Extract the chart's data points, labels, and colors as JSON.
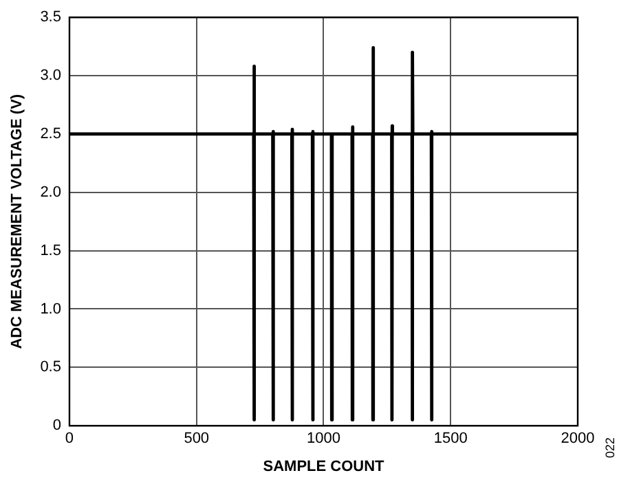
{
  "chart_data": {
    "type": "line",
    "xlabel": "SAMPLE COUNT",
    "ylabel": "ADC MEASUREMENT VOLTAGE (V)",
    "annotations": [
      "022"
    ],
    "xlim": [
      0,
      2000
    ],
    "xticks": [
      0,
      500,
      1000,
      1500,
      2000
    ],
    "ylim": [
      0,
      3.5
    ],
    "yticks": [
      0,
      0.5,
      {
        "value": 1,
        "label": "1.0"
      },
      1.5,
      {
        "value": 2,
        "label": "2.0"
      },
      2.5,
      {
        "value": 3,
        "label": "3.0"
      },
      3.5
    ],
    "grid": true,
    "legend": false,
    "marker": "none",
    "line_style": "solid",
    "series": [
      {
        "color": "#000000",
        "x": [
          0,
          725,
          726,
          727,
          728,
          800,
          801,
          802,
          803,
          875,
          876,
          877,
          878,
          956,
          957,
          958,
          959,
          1031,
          1032,
          1033,
          1034,
          1112,
          1113,
          1114,
          1115,
          1193,
          1194,
          1195,
          1196,
          1268,
          1269,
          1270,
          1271,
          1348,
          1349,
          1350,
          1351,
          1424,
          1425,
          1426,
          1427,
          2000
        ],
        "values": [
          2.5,
          2.5,
          0.05,
          3.08,
          2.5,
          2.5,
          0.05,
          2.52,
          2.5,
          2.5,
          0.05,
          2.54,
          2.5,
          2.5,
          0.05,
          2.52,
          2.5,
          2.5,
          0.05,
          2.5,
          2.5,
          2.5,
          0.05,
          2.56,
          2.5,
          2.5,
          0.05,
          3.24,
          2.5,
          2.5,
          0.05,
          2.57,
          2.5,
          2.5,
          0.05,
          3.2,
          2.5,
          2.5,
          0.05,
          2.52,
          2.5,
          2.5
        ]
      }
    ]
  }
}
